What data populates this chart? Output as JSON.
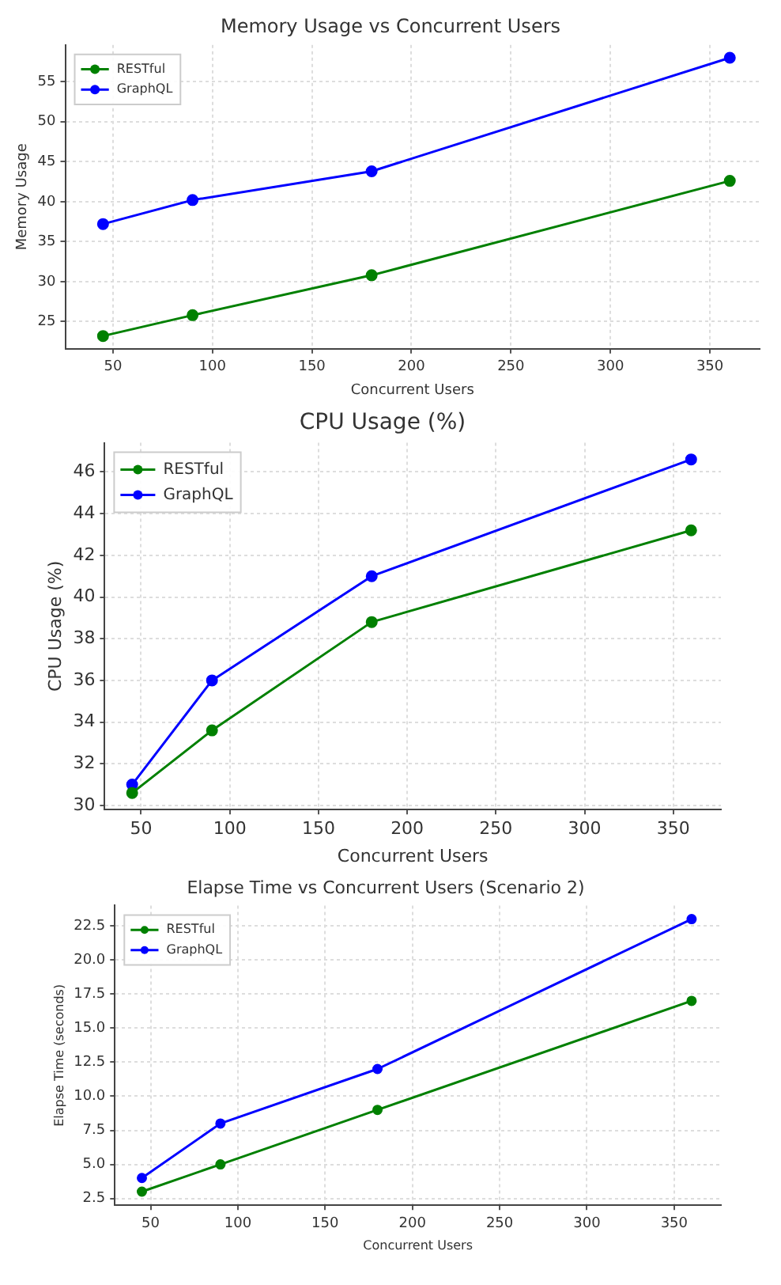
{
  "chart_data": [
    {
      "type": "line",
      "title": "Memory Usage vs Concurrent Users",
      "xlabel": "Concurrent Users",
      "ylabel": "Memory Usage",
      "x": [
        45,
        90,
        180,
        360
      ],
      "xlim": [
        26,
        375
      ],
      "xticks": [
        50,
        100,
        150,
        200,
        250,
        300,
        350
      ],
      "ylim": [
        21.6,
        59.6
      ],
      "yticks": [
        25,
        30,
        35,
        40,
        45,
        50,
        55
      ],
      "grid": true,
      "legend": "top left",
      "marker": "circle",
      "line_style": "solid",
      "series": [
        {
          "name": "RESTful",
          "color": "#008000",
          "values": [
            23.2,
            25.8,
            30.8,
            42.6
          ]
        },
        {
          "name": "GraphQL",
          "color": "#0000ff",
          "values": [
            37.2,
            40.2,
            43.8,
            58.0
          ]
        }
      ]
    },
    {
      "type": "line",
      "title": "CPU Usage (%)",
      "xlabel": "Concurrent Users",
      "ylabel": "CPU Usage (%)",
      "x": [
        45,
        90,
        180,
        360
      ],
      "xlim": [
        29.5,
        376.8
      ],
      "xticks": [
        50,
        100,
        150,
        200,
        250,
        300,
        350
      ],
      "ylim": [
        29.8,
        47.4
      ],
      "yticks": [
        30,
        32,
        34,
        36,
        38,
        40,
        42,
        44,
        46
      ],
      "grid": true,
      "legend": "top left",
      "marker": "circle",
      "line_style": "solid",
      "series": [
        {
          "name": "RESTful",
          "color": "#008000",
          "values": [
            30.6,
            33.6,
            38.8,
            43.2
          ]
        },
        {
          "name": "GraphQL",
          "color": "#0000ff",
          "values": [
            31.0,
            36.0,
            41.0,
            46.6
          ]
        }
      ]
    },
    {
      "type": "line",
      "title": "Elapse Time vs Concurrent Users (Scenario 2)",
      "xlabel": "Concurrent Users",
      "ylabel": "Elapse Time (seconds)",
      "x": [
        45,
        90,
        180,
        360
      ],
      "xlim": [
        29.5,
        376.8
      ],
      "xticks": [
        50,
        100,
        150,
        200,
        250,
        300,
        350
      ],
      "ylim": [
        2.0,
        24.0
      ],
      "yticks": [
        2.5,
        {
          "value": 5,
          "label": "5.0"
        },
        7.5,
        {
          "value": 10,
          "label": "10.0"
        },
        12.5,
        {
          "value": 15,
          "label": "15.0"
        },
        17.5,
        {
          "value": 20,
          "label": "20.0"
        },
        22.5
      ],
      "grid": true,
      "legend": "top left",
      "marker": "circle",
      "line_style": "solid",
      "series": [
        {
          "name": "RESTful",
          "color": "#008000",
          "values": [
            3,
            5,
            9,
            17
          ]
        },
        {
          "name": "GraphQL",
          "color": "#0000ff",
          "values": [
            4,
            8,
            12,
            23
          ]
        }
      ]
    }
  ]
}
